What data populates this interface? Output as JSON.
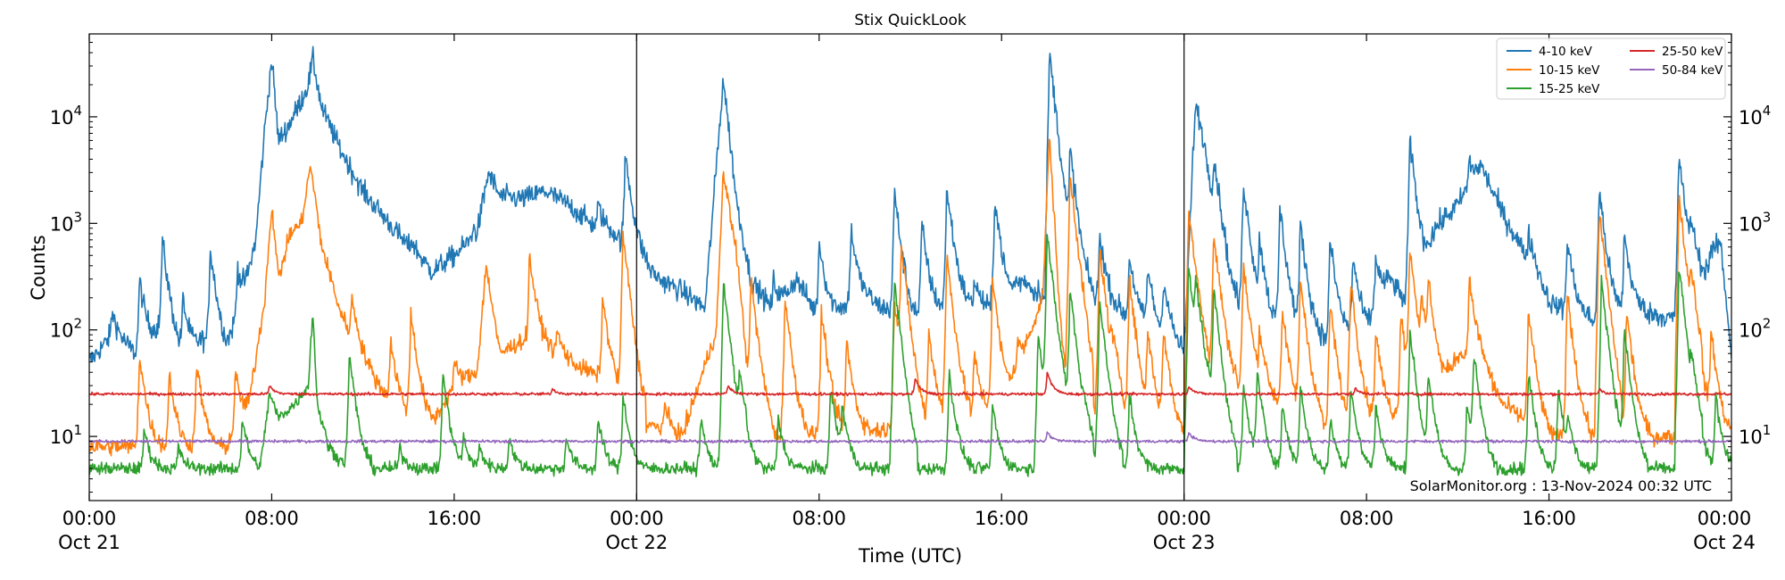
{
  "chart_data": {
    "type": "line",
    "title": "Stix QuickLook",
    "xlabel": "Time (UTC)",
    "ylabel": "Counts",
    "yscale": "log",
    "ylim": [
      2.5,
      60000
    ],
    "xlim_hours": [
      0,
      72
    ],
    "grid": false,
    "legend_position": "top-right",
    "day_separators_hours": [
      24,
      48
    ],
    "footer": "SolarMonitor.org : 13-Nov-2024 00:32 UTC",
    "x_ticks": [
      {
        "hours": 0,
        "time": "00:00",
        "date": "Oct 21"
      },
      {
        "hours": 8,
        "time": "08:00",
        "date": ""
      },
      {
        "hours": 16,
        "time": "16:00",
        "date": ""
      },
      {
        "hours": 24,
        "time": "00:00",
        "date": "Oct 22"
      },
      {
        "hours": 32,
        "time": "08:00",
        "date": ""
      },
      {
        "hours": 40,
        "time": "16:00",
        "date": ""
      },
      {
        "hours": 48,
        "time": "00:00",
        "date": "Oct 23"
      },
      {
        "hours": 56,
        "time": "08:00",
        "date": ""
      },
      {
        "hours": 64,
        "time": "16:00",
        "date": ""
      },
      {
        "hours": 72,
        "time": "00:00",
        "date": "Oct 24"
      }
    ],
    "y_ticks": [
      {
        "value": 10,
        "base": "10",
        "exp": "1"
      },
      {
        "value": 100,
        "base": "10",
        "exp": "2"
      },
      {
        "value": 1000,
        "base": "10",
        "exp": "3"
      },
      {
        "value": 10000,
        "base": "10",
        "exp": "4"
      }
    ],
    "series": [
      {
        "name": "4-10 keV",
        "color": "#1f77b4",
        "baseline": 70,
        "noise": 0.28,
        "points": [
          [
            0,
            50
          ],
          [
            1,
            90
          ],
          [
            2,
            60
          ],
          [
            3,
            100
          ],
          [
            4,
            55
          ],
          [
            5,
            80
          ],
          [
            6,
            60
          ],
          [
            6.9,
            300
          ],
          [
            7.3,
            700
          ],
          [
            7.7,
            8000
          ],
          [
            8,
            35000
          ],
          [
            8.3,
            6000
          ],
          [
            8.7,
            8000
          ],
          [
            9.2,
            13000
          ],
          [
            9.6,
            20000
          ],
          [
            9.8,
            35000
          ],
          [
            10.2,
            12000
          ],
          [
            11,
            5000
          ],
          [
            12,
            2000
          ],
          [
            13,
            1100
          ],
          [
            14,
            600
          ],
          [
            15,
            350
          ],
          [
            16,
            500
          ],
          [
            17,
            800
          ],
          [
            17.5,
            3000
          ],
          [
            18,
            1800
          ],
          [
            19,
            1700
          ],
          [
            20,
            2000
          ],
          [
            21,
            1500
          ],
          [
            22,
            1000
          ],
          [
            23,
            800
          ],
          [
            24,
            500
          ],
          [
            25,
            300
          ],
          [
            26,
            230
          ],
          [
            27,
            160
          ],
          [
            27.8,
            23000
          ],
          [
            28.4,
            1500
          ],
          [
            29,
            300
          ],
          [
            30,
            150
          ],
          [
            31,
            300
          ],
          [
            32,
            130
          ],
          [
            34,
            200
          ],
          [
            36,
            120
          ],
          [
            38,
            180
          ],
          [
            40,
            150
          ],
          [
            41,
            300
          ],
          [
            42,
            160
          ],
          [
            44,
            200
          ],
          [
            46,
            120
          ],
          [
            48,
            60
          ],
          [
            48.5,
            12000
          ],
          [
            49,
            3000
          ],
          [
            50,
            200
          ],
          [
            52,
            100
          ],
          [
            54,
            80
          ],
          [
            56,
            100
          ],
          [
            57,
            300
          ],
          [
            58,
            150
          ],
          [
            59,
            900
          ],
          [
            60,
            1500
          ],
          [
            61,
            3500
          ],
          [
            62,
            1200
          ],
          [
            63,
            500
          ],
          [
            64,
            180
          ],
          [
            66,
            120
          ],
          [
            68,
            150
          ],
          [
            70,
            120
          ],
          [
            71.5,
            700
          ],
          [
            72,
            50
          ]
        ],
        "spikes": [
          [
            1.0,
            150
          ],
          [
            2.2,
            300
          ],
          [
            3.2,
            700
          ],
          [
            4.1,
            200
          ],
          [
            5.3,
            600
          ],
          [
            6.5,
            400
          ],
          [
            10.9,
            550
          ],
          [
            14.1,
            700
          ],
          [
            16.8,
            900
          ],
          [
            20.5,
            1200
          ],
          [
            22.3,
            1500
          ],
          [
            23.5,
            4500
          ],
          [
            30.0,
            300
          ],
          [
            32.0,
            700
          ],
          [
            33.4,
            900
          ],
          [
            35.3,
            2000
          ],
          [
            36.5,
            1000
          ],
          [
            37.6,
            2200
          ],
          [
            38.8,
            300
          ],
          [
            39.7,
            1800
          ],
          [
            40.6,
            300
          ],
          [
            41.6,
            250
          ],
          [
            42.1,
            40000
          ],
          [
            42.9,
            200
          ],
          [
            43.0,
            5000
          ],
          [
            44.3,
            800
          ],
          [
            45.6,
            500
          ],
          [
            46.4,
            380
          ],
          [
            47.1,
            300
          ],
          [
            48.5,
            12000
          ],
          [
            49.3,
            4000
          ],
          [
            50.6,
            2500
          ],
          [
            51.3,
            700
          ],
          [
            52.2,
            1400
          ],
          [
            53.1,
            1000
          ],
          [
            54.4,
            700
          ],
          [
            55.4,
            500
          ],
          [
            56.4,
            500
          ],
          [
            57.9,
            6000
          ],
          [
            60.5,
            4000
          ],
          [
            63.1,
            800
          ],
          [
            64.8,
            700
          ],
          [
            66.2,
            2100
          ],
          [
            67.3,
            800
          ],
          [
            69.7,
            4500
          ],
          [
            70.2,
            1200
          ],
          [
            71.1,
            600
          ]
        ]
      },
      {
        "name": "10-15 keV",
        "color": "#ff7f0e",
        "baseline": 9,
        "noise": 0.22,
        "points": [
          [
            0,
            8
          ],
          [
            6,
            8
          ],
          [
            7,
            20
          ],
          [
            7.7,
            200
          ],
          [
            8,
            1500
          ],
          [
            8.3,
            300
          ],
          [
            8.8,
            800
          ],
          [
            9.3,
            1000
          ],
          [
            9.7,
            3500
          ],
          [
            10.2,
            600
          ],
          [
            11,
            150
          ],
          [
            12,
            50
          ],
          [
            13,
            25
          ],
          [
            14,
            15
          ],
          [
            15,
            13
          ],
          [
            16,
            30
          ],
          [
            17,
            40
          ],
          [
            17.4,
            400
          ],
          [
            18,
            60
          ],
          [
            19,
            80
          ],
          [
            20,
            70
          ],
          [
            21,
            50
          ],
          [
            22,
            40
          ],
          [
            23,
            30
          ],
          [
            24,
            14
          ],
          [
            26,
            10
          ],
          [
            27.5,
            100
          ],
          [
            27.8,
            3000
          ],
          [
            28.4,
            500
          ],
          [
            29,
            20
          ],
          [
            30,
            10
          ],
          [
            36,
            12
          ],
          [
            40,
            18
          ],
          [
            41.8,
            200
          ],
          [
            42.1,
            6500
          ],
          [
            42.6,
            100
          ],
          [
            43,
            20
          ],
          [
            48,
            10
          ],
          [
            48.2,
            1300
          ],
          [
            48.7,
            200
          ],
          [
            49.2,
            40
          ],
          [
            55,
            10
          ],
          [
            59,
            20
          ],
          [
            60,
            60
          ],
          [
            61,
            50
          ],
          [
            62,
            20
          ],
          [
            64,
            10
          ],
          [
            70,
            10
          ],
          [
            72,
            10
          ]
        ],
        "spikes": [
          [
            2.2,
            60
          ],
          [
            3.5,
            40
          ],
          [
            4.7,
            50
          ],
          [
            6.4,
            40
          ],
          [
            11.5,
            200
          ],
          [
            13.2,
            80
          ],
          [
            14.1,
            150
          ],
          [
            16.0,
            50
          ],
          [
            19.3,
            500
          ],
          [
            20.5,
            100
          ],
          [
            22.5,
            200
          ],
          [
            23.4,
            800
          ],
          [
            25.2,
            20
          ],
          [
            29.0,
            300
          ],
          [
            30.5,
            200
          ],
          [
            32.1,
            150
          ],
          [
            33.2,
            80
          ],
          [
            35.3,
            200
          ],
          [
            35.6,
            600
          ],
          [
            36.8,
            100
          ],
          [
            37.6,
            500
          ],
          [
            38.8,
            60
          ],
          [
            39.6,
            300
          ],
          [
            40.7,
            80
          ],
          [
            43.0,
            3000
          ],
          [
            44.3,
            600
          ],
          [
            44.8,
            100
          ],
          [
            45.6,
            300
          ],
          [
            46.4,
            100
          ],
          [
            47.1,
            100
          ],
          [
            49.3,
            800
          ],
          [
            50.6,
            400
          ],
          [
            51.3,
            100
          ],
          [
            52.3,
            150
          ],
          [
            53.1,
            300
          ],
          [
            54.4,
            180
          ],
          [
            55.3,
            300
          ],
          [
            56.4,
            100
          ],
          [
            57.5,
            150
          ],
          [
            57.9,
            600
          ],
          [
            58.4,
            200
          ],
          [
            58.7,
            300
          ],
          [
            60.5,
            300
          ],
          [
            63.1,
            150
          ],
          [
            64.8,
            220
          ],
          [
            66.2,
            1300
          ],
          [
            67.4,
            150
          ],
          [
            69.7,
            1800
          ],
          [
            70.2,
            400
          ],
          [
            71.1,
            100
          ]
        ]
      },
      {
        "name": "15-25 keV",
        "color": "#2ca02c",
        "baseline": 5,
        "noise": 0.16,
        "points": [
          [
            0,
            5
          ],
          [
            7.5,
            5
          ],
          [
            7.9,
            25
          ],
          [
            8.3,
            15
          ],
          [
            9,
            20
          ],
          [
            9.6,
            30
          ],
          [
            9.8,
            150
          ],
          [
            10,
            20
          ],
          [
            10.5,
            8
          ],
          [
            11,
            6
          ],
          [
            12,
            5
          ],
          [
            72,
            5
          ]
        ],
        "spikes": [
          [
            2.4,
            12
          ],
          [
            3.9,
            8
          ],
          [
            6.7,
            15
          ],
          [
            11.4,
            60
          ],
          [
            13.6,
            8
          ],
          [
            15.5,
            40
          ],
          [
            16.4,
            10
          ],
          [
            17.1,
            8
          ],
          [
            18.4,
            10
          ],
          [
            20.9,
            10
          ],
          [
            22.3,
            15
          ],
          [
            23.4,
            25
          ],
          [
            26.8,
            15
          ],
          [
            27.8,
            300
          ],
          [
            28.5,
            40
          ],
          [
            30.2,
            15
          ],
          [
            32.5,
            30
          ],
          [
            33.0,
            20
          ],
          [
            35.3,
            300
          ],
          [
            37.7,
            40
          ],
          [
            39.6,
            20
          ],
          [
            41.6,
            100
          ],
          [
            42.0,
            800
          ],
          [
            42.3,
            100
          ],
          [
            43.0,
            250
          ],
          [
            43.5,
            30
          ],
          [
            44.3,
            200
          ],
          [
            45.6,
            25
          ],
          [
            48.2,
            400
          ],
          [
            48.5,
            300
          ],
          [
            48.8,
            60
          ],
          [
            49.3,
            250
          ],
          [
            50.6,
            30
          ],
          [
            51.2,
            40
          ],
          [
            52.3,
            20
          ],
          [
            53.1,
            30
          ],
          [
            54.4,
            15
          ],
          [
            55.3,
            30
          ],
          [
            56.4,
            20
          ],
          [
            57.9,
            100
          ],
          [
            58.7,
            40
          ],
          [
            60.4,
            20
          ],
          [
            60.7,
            60
          ],
          [
            63.1,
            40
          ],
          [
            64.4,
            30
          ],
          [
            64.8,
            15
          ],
          [
            66.3,
            300
          ],
          [
            67.3,
            100
          ],
          [
            69.7,
            400
          ],
          [
            70.2,
            60
          ],
          [
            71.3,
            25
          ]
        ]
      },
      {
        "name": "25-50 keV",
        "color": "#d62728",
        "baseline": 25,
        "noise": 0.035,
        "points": [
          [
            0,
            25
          ],
          [
            72,
            25
          ]
        ],
        "spikes": [
          [
            7.9,
            30
          ],
          [
            20.3,
            28
          ],
          [
            28.0,
            30
          ],
          [
            36.2,
            35
          ],
          [
            42.0,
            40
          ],
          [
            48.2,
            30
          ],
          [
            55.5,
            28
          ],
          [
            66.2,
            28
          ]
        ]
      },
      {
        "name": "50-84 keV",
        "color": "#9467bd",
        "baseline": 9,
        "noise": 0.035,
        "points": [
          [
            0,
            9
          ],
          [
            72,
            9
          ]
        ],
        "spikes": [
          [
            42.0,
            11
          ],
          [
            48.2,
            11
          ]
        ]
      }
    ]
  }
}
